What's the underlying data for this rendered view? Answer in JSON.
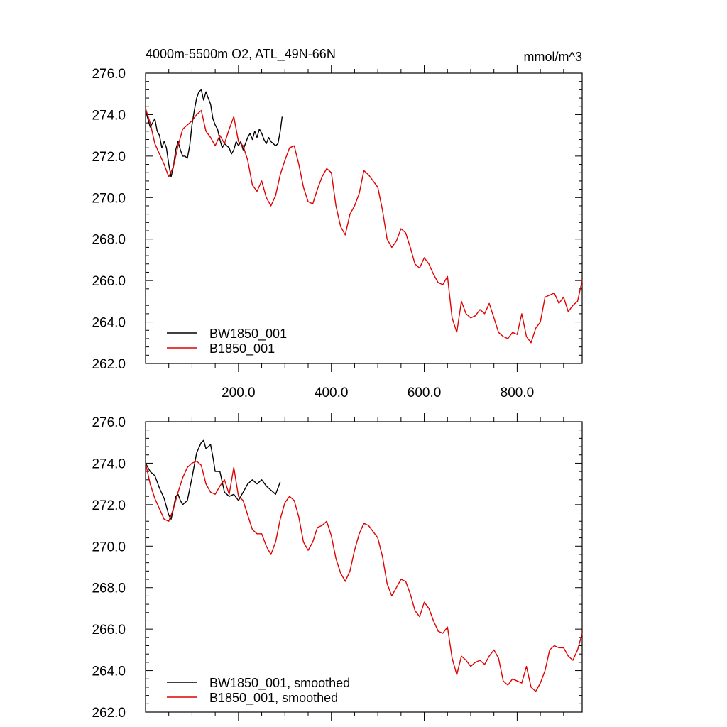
{
  "chart_data": [
    {
      "type": "line",
      "title": "4000m-5500m O2, ATL_49N-66N",
      "units": "mmol/m^3",
      "xlabel": "",
      "ylabel": "",
      "xlim": [
        0,
        940
      ],
      "ylim": [
        262.0,
        276.0
      ],
      "xticks": [
        200,
        400,
        600,
        800
      ],
      "xtick_labels": [
        "200.0",
        "400.0",
        "600.0",
        "800.0"
      ],
      "yticks": [
        262,
        264,
        266,
        268,
        270,
        272,
        274,
        276
      ],
      "ytick_labels": [
        "262.0",
        "264.0",
        "266.0",
        "268.0",
        "270.0",
        "272.0",
        "274.0",
        "276.0"
      ],
      "legend_position": "bottom-left",
      "grid": false,
      "series": [
        {
          "name": "BW1850_001",
          "color": "#000000",
          "x": [
            0,
            10,
            20,
            25,
            30,
            35,
            40,
            45,
            50,
            55,
            60,
            65,
            70,
            75,
            80,
            85,
            90,
            95,
            100,
            105,
            110,
            115,
            120,
            125,
            130,
            135,
            140,
            145,
            150,
            155,
            160,
            165,
            170,
            175,
            180,
            185,
            190,
            195,
            200,
            205,
            210,
            215,
            220,
            225,
            230,
            235,
            240,
            245,
            250,
            255,
            260,
            265,
            270,
            275,
            280,
            285,
            290,
            294
          ],
          "y": [
            274.2,
            273.4,
            273.8,
            273.2,
            273.0,
            272.4,
            272.7,
            272.4,
            271.6,
            271.0,
            271.5,
            272.3,
            272.7,
            272.3,
            272.0,
            272.0,
            271.9,
            272.5,
            273.5,
            274.2,
            274.8,
            275.1,
            275.2,
            274.7,
            275.1,
            274.8,
            274.5,
            273.8,
            273.5,
            273.3,
            272.8,
            272.4,
            272.6,
            272.5,
            272.4,
            272.1,
            272.3,
            272.7,
            272.5,
            272.7,
            272.3,
            272.6,
            272.9,
            273.1,
            272.8,
            273.2,
            272.9,
            273.3,
            273.1,
            272.8,
            272.6,
            272.9,
            272.7,
            272.6,
            272.5,
            272.6,
            273.2,
            273.9
          ]
        },
        {
          "name": "B1850_001",
          "color": "#e00000",
          "x": [
            0,
            10,
            20,
            30,
            40,
            50,
            60,
            70,
            80,
            90,
            100,
            110,
            120,
            130,
            140,
            150,
            160,
            170,
            180,
            190,
            200,
            210,
            220,
            230,
            240,
            250,
            260,
            270,
            280,
            290,
            300,
            310,
            320,
            330,
            340,
            350,
            360,
            370,
            380,
            390,
            400,
            410,
            420,
            430,
            440,
            450,
            460,
            470,
            480,
            490,
            500,
            510,
            520,
            530,
            540,
            550,
            560,
            570,
            580,
            590,
            600,
            610,
            620,
            630,
            640,
            650,
            660,
            670,
            680,
            690,
            700,
            710,
            720,
            730,
            740,
            750,
            760,
            770,
            780,
            790,
            800,
            810,
            820,
            830,
            840,
            850,
            860,
            870,
            880,
            890,
            900,
            910,
            920,
            930,
            940
          ],
          "y": [
            274.3,
            273.6,
            272.6,
            272.1,
            271.6,
            271.0,
            271.5,
            272.5,
            273.3,
            273.5,
            273.7,
            274.0,
            274.2,
            273.2,
            272.9,
            272.5,
            273.0,
            272.6,
            273.3,
            273.9,
            272.7,
            272.5,
            271.8,
            270.6,
            270.3,
            270.8,
            270.0,
            269.6,
            270.1,
            271.1,
            271.8,
            272.4,
            272.5,
            271.6,
            270.5,
            269.8,
            269.7,
            270.4,
            271.0,
            271.4,
            271.2,
            269.6,
            268.6,
            268.2,
            269.2,
            269.6,
            270.2,
            271.3,
            271.1,
            270.8,
            270.5,
            269.4,
            268.0,
            267.6,
            267.9,
            268.5,
            268.3,
            267.6,
            266.8,
            266.6,
            267.1,
            266.8,
            266.3,
            265.9,
            265.8,
            266.2,
            264.2,
            263.5,
            265.0,
            264.4,
            264.2,
            264.3,
            264.6,
            264.4,
            264.9,
            264.2,
            263.5,
            263.3,
            263.2,
            263.5,
            263.4,
            264.4,
            263.3,
            263.0,
            263.7,
            264.0,
            265.2,
            265.3,
            265.4,
            264.9,
            265.2,
            264.5,
            264.8,
            265.0,
            266.0
          ]
        }
      ]
    },
    {
      "type": "line",
      "title": "",
      "xlabel": "",
      "ylabel": "",
      "xlim": [
        0,
        940
      ],
      "ylim": [
        262.0,
        276.0
      ],
      "xticks": [
        200,
        400,
        600,
        800
      ],
      "xtick_labels": [],
      "yticks": [
        262,
        264,
        266,
        268,
        270,
        272,
        274,
        276
      ],
      "ytick_labels": [
        "262.0",
        "264.0",
        "266.0",
        "268.0",
        "270.0",
        "272.0",
        "274.0",
        "276.0"
      ],
      "legend_position": "bottom-left",
      "grid": false,
      "series": [
        {
          "name": "BW1850_001, smoothed",
          "color": "#000000",
          "x": [
            0,
            10,
            20,
            30,
            40,
            50,
            55,
            60,
            65,
            70,
            75,
            80,
            90,
            100,
            110,
            120,
            125,
            130,
            140,
            145,
            150,
            160,
            170,
            180,
            190,
            200,
            210,
            215,
            220,
            230,
            240,
            250,
            260,
            270,
            275,
            280,
            290
          ],
          "y": [
            274.0,
            273.6,
            273.4,
            272.8,
            272.3,
            271.5,
            271.3,
            271.8,
            272.4,
            272.5,
            272.2,
            272.0,
            272.2,
            273.3,
            274.5,
            275.0,
            275.1,
            274.7,
            274.9,
            274.3,
            273.6,
            273.6,
            272.6,
            272.4,
            272.5,
            272.2,
            272.6,
            272.8,
            273.0,
            273.2,
            273.0,
            273.2,
            272.9,
            272.7,
            272.6,
            272.5,
            273.1
          ]
        },
        {
          "name": "B1850_001, smoothed",
          "color": "#e00000",
          "x": [
            0,
            10,
            20,
            30,
            40,
            50,
            60,
            70,
            80,
            90,
            100,
            110,
            120,
            130,
            140,
            150,
            160,
            170,
            180,
            190,
            200,
            210,
            220,
            230,
            240,
            250,
            260,
            270,
            280,
            290,
            300,
            310,
            320,
            330,
            340,
            350,
            360,
            370,
            380,
            390,
            400,
            410,
            420,
            430,
            440,
            450,
            460,
            470,
            480,
            490,
            500,
            510,
            520,
            530,
            540,
            550,
            560,
            570,
            580,
            590,
            600,
            610,
            620,
            630,
            640,
            650,
            660,
            670,
            680,
            690,
            700,
            710,
            720,
            730,
            740,
            750,
            760,
            770,
            780,
            790,
            800,
            810,
            820,
            830,
            840,
            850,
            860,
            870,
            880,
            890,
            900,
            910,
            920,
            930,
            940
          ],
          "y": [
            274.0,
            273.0,
            272.3,
            271.8,
            271.3,
            271.2,
            271.8,
            272.6,
            273.3,
            273.8,
            274.0,
            274.1,
            273.9,
            273.0,
            272.6,
            272.5,
            272.9,
            273.2,
            272.5,
            273.8,
            272.4,
            272.2,
            271.5,
            270.8,
            270.6,
            270.6,
            270.0,
            269.6,
            270.2,
            271.3,
            272.1,
            272.4,
            272.2,
            271.4,
            270.2,
            269.8,
            270.2,
            270.9,
            271.0,
            271.2,
            270.5,
            269.4,
            268.7,
            268.3,
            268.8,
            269.8,
            270.6,
            271.1,
            271.0,
            270.7,
            270.4,
            269.5,
            268.2,
            267.6,
            268.0,
            268.4,
            268.3,
            267.7,
            266.9,
            266.6,
            267.3,
            267.0,
            266.4,
            265.9,
            265.8,
            266.1,
            264.6,
            263.8,
            264.7,
            264.5,
            264.2,
            264.4,
            264.5,
            264.3,
            264.7,
            265.0,
            264.6,
            263.5,
            263.3,
            263.6,
            263.5,
            263.4,
            264.2,
            263.2,
            263.0,
            263.4,
            264.0,
            265.0,
            265.2,
            265.1,
            265.1,
            264.7,
            264.5,
            265.0,
            265.8
          ]
        }
      ]
    }
  ]
}
